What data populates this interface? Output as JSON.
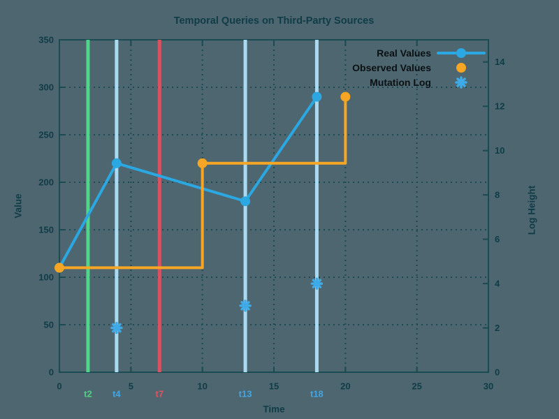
{
  "colors": {
    "background": "#4d666f",
    "frame": "#1a4a52",
    "grid": "#1a4a52",
    "text": "#103c48",
    "legend_text": "#0b1013"
  },
  "chart_data": {
    "type": "line",
    "title": "Temporal Queries on Third-Party Sources",
    "xlabel": "Time",
    "ylabel": "Value",
    "y2label": "Log Height",
    "xlim": [
      0,
      30
    ],
    "ylim": [
      0,
      350
    ],
    "y2lim": [
      0,
      15
    ],
    "xticks": [
      0,
      5,
      10,
      15,
      20,
      25,
      30
    ],
    "yticks": [
      0,
      50,
      100,
      150,
      200,
      250,
      300,
      350
    ],
    "y2ticks": [
      0,
      2,
      4,
      6,
      8,
      10,
      12,
      14
    ],
    "grid": true,
    "legend_position": "top-right",
    "series": [
      {
        "name": "Real Values",
        "style": "linespoints",
        "axis": "y1",
        "color": "#2ba7e2",
        "points": [
          [
            0,
            110
          ],
          [
            4,
            220
          ],
          [
            13,
            180
          ],
          [
            18,
            290
          ]
        ]
      },
      {
        "name": "Observed Values",
        "style": "steps-points",
        "axis": "y1",
        "color": "#f6a524",
        "line_points": [
          [
            0,
            110
          ],
          [
            10,
            110
          ],
          [
            10,
            220
          ],
          [
            20,
            220
          ],
          [
            20,
            290
          ]
        ],
        "marker_points": [
          [
            0,
            110
          ],
          [
            10,
            220
          ],
          [
            20,
            290
          ]
        ]
      },
      {
        "name": "Mutation Log",
        "style": "asterisks",
        "axis": "y2",
        "color": "#3eaae8",
        "points": [
          [
            4,
            2
          ],
          [
            13,
            3
          ],
          [
            18,
            4
          ]
        ]
      }
    ],
    "event_lines": [
      {
        "label": "t2",
        "x": 2,
        "line_color": "#4fd687",
        "label_color": "#4ed183"
      },
      {
        "label": "t4",
        "x": 4,
        "line_color": "#aadaf2",
        "label_color": "#43a6e4"
      },
      {
        "label": "t7",
        "x": 7,
        "line_color": "#da5261",
        "label_color": "#e15360"
      },
      {
        "label": "t13",
        "x": 13,
        "line_color": "#aadaf2",
        "label_color": "#43a6e4"
      },
      {
        "label": "t18",
        "x": 18,
        "line_color": "#aadaf2",
        "label_color": "#43a6e4"
      }
    ]
  }
}
